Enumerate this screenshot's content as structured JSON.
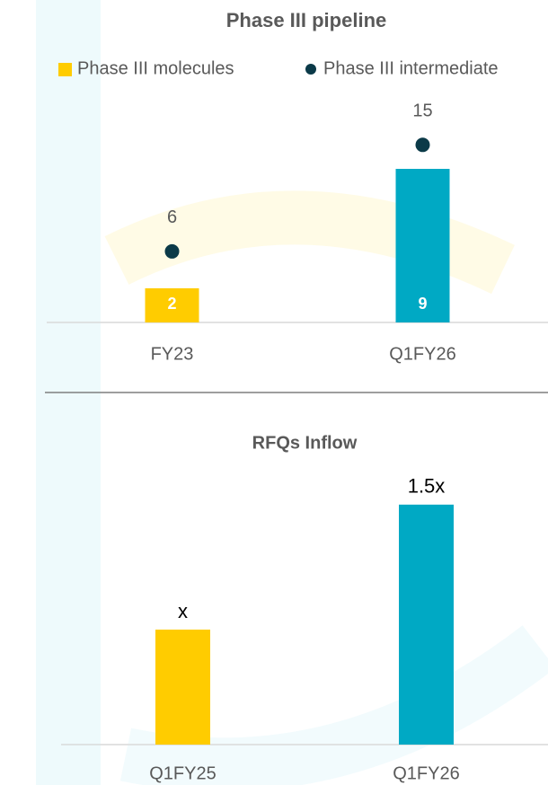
{
  "chart_data": [
    {
      "type": "bar",
      "title": "Phase III pipeline",
      "categories": [
        "FY23",
        "Q1FY26"
      ],
      "series": [
        {
          "name": "Phase III molecules",
          "color": "#FFCC00",
          "colors": [
            "#FFCC00",
            "#00A9C4"
          ],
          "values": [
            2,
            9
          ]
        },
        {
          "name": "Phase III intermediate",
          "type": "scatter",
          "axis": "y2",
          "color": "#0B3A48",
          "values": [
            6,
            15
          ]
        }
      ],
      "ylim": [
        0,
        12
      ],
      "y2lim": [
        0,
        17.3
      ]
    },
    {
      "type": "bar",
      "title": "RFQs Inflow",
      "categories": [
        "Q1FY25",
        "Q1FY26"
      ],
      "values": [
        1,
        1.5
      ],
      "value_labels": [
        "x",
        "1.5x"
      ],
      "colors": [
        "#FFCC00",
        "#00A9C4"
      ],
      "ylim": [
        0.54,
        1.6
      ]
    }
  ]
}
